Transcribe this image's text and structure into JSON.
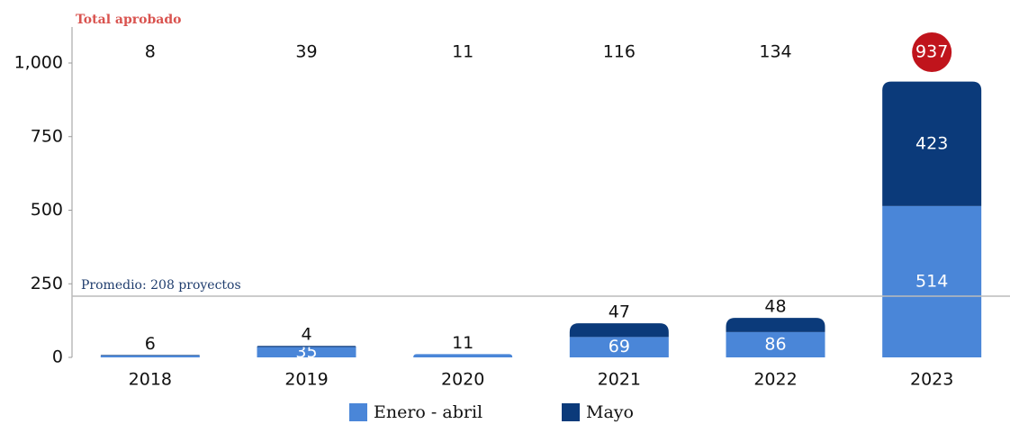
{
  "chart_data": {
    "type": "stacked_bar",
    "annotation": "Total aprobado",
    "categories": [
      "2018",
      "2019",
      "2020",
      "2021",
      "2022",
      "2023"
    ],
    "series": [
      {
        "name": "Enero - abril",
        "color": "#4a86d8",
        "values": [
          6,
          35,
          11,
          69,
          86,
          514
        ]
      },
      {
        "name": "Mayo",
        "color": "#0b3a7a",
        "values": [
          2,
          4,
          0,
          47,
          48,
          423
        ],
        "value_labels": [
          null,
          "4",
          null,
          "47",
          "48",
          "423"
        ]
      }
    ],
    "totals": [
      8,
      39,
      11,
      116,
      134,
      937
    ],
    "highlight_color": "#c0141c",
    "average": {
      "value": 208,
      "label": "Promedio: 208 proyectos"
    },
    "ylim": [
      0,
      1000
    ],
    "yticks": [
      0,
      250,
      500,
      750,
      {
        "value": 1000,
        "label": "1,000"
      }
    ]
  }
}
